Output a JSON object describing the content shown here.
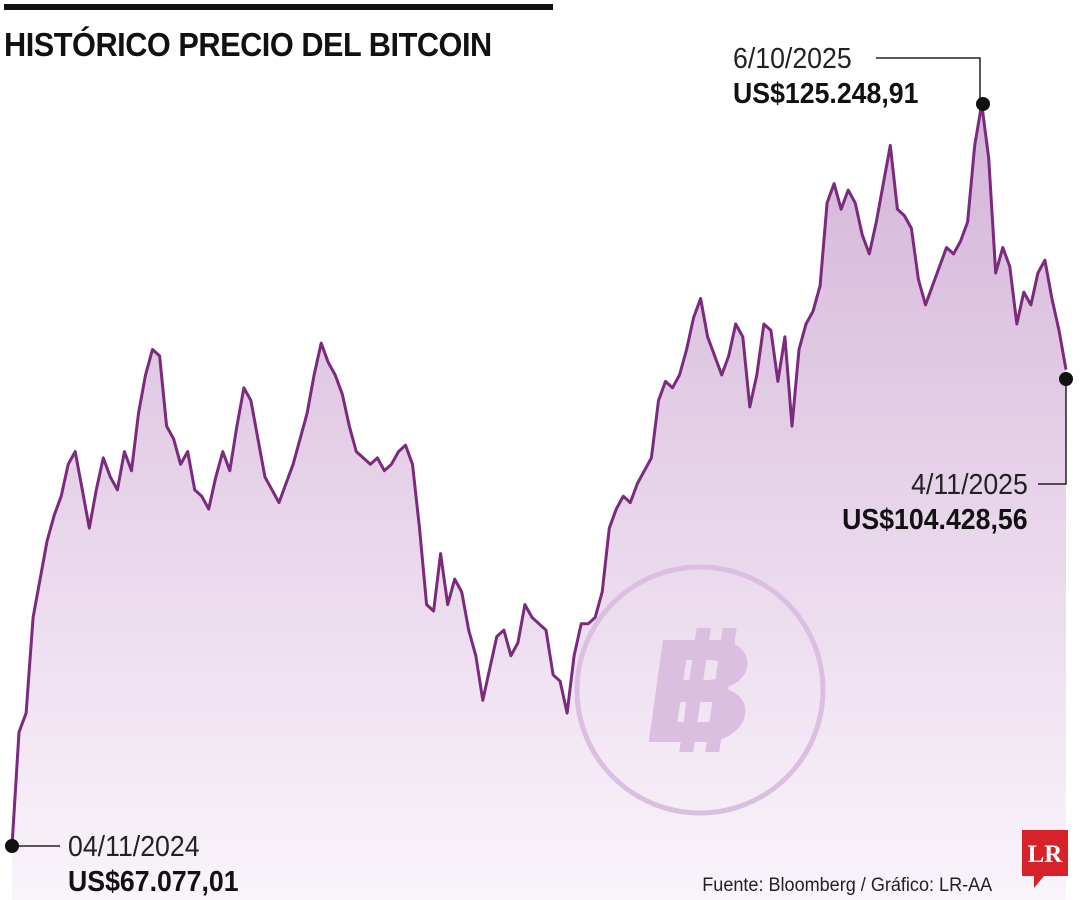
{
  "title": "HISTÓRICO PRECIO DEL BITCOIN",
  "annotations": {
    "start": {
      "date": "04/11/2024",
      "value": "US$67.077,01"
    },
    "peak": {
      "date": "6/10/2025",
      "value": "US$125.248,91"
    },
    "end": {
      "date": "4/11/2025",
      "value": "US$104.428,56"
    }
  },
  "source": "Fuente: Bloomberg / Gráfico: LR-AA",
  "logo_text": "LR",
  "colors": {
    "line": "#7b2a7d",
    "area_top": "#d4b4d8",
    "area_bottom": "#faf4fb",
    "coin": "#dbbfe0",
    "logo": "#d6232a"
  },
  "icons": {
    "watermark": "bitcoin-coin-icon"
  },
  "chart_data": {
    "type": "area",
    "x_range": [
      "2024-11-04",
      "2025-11-04"
    ],
    "ylim": [
      67077,
      125249
    ],
    "grid": false,
    "series": [
      {
        "values": [
          67077,
          76000,
          77500,
          85000,
          88000,
          91000,
          93000,
          94500,
          97000,
          98000,
          95000,
          92000,
          95000,
          97500,
          96000,
          95000,
          98000,
          96500,
          101000,
          104000,
          106000,
          105500,
          100000,
          99000,
          97000,
          98000,
          95000,
          94500,
          93500,
          96000,
          98000,
          96500,
          100000,
          103000,
          102000,
          99000,
          96000,
          95000,
          94000,
          95500,
          97000,
          99000,
          101000,
          104000,
          106500,
          105000,
          104000,
          102500,
          100000,
          98000,
          97500,
          97000,
          97500,
          96500,
          97000,
          98000,
          98500,
          97000,
          92000,
          86000,
          85500,
          90000,
          86000,
          88000,
          87000,
          84000,
          82000,
          78500,
          81000,
          83500,
          84000,
          82000,
          83000,
          86000,
          85000,
          84500,
          84000,
          80500,
          80000,
          77500,
          82000,
          84500,
          84500,
          85000,
          87000,
          92000,
          93500,
          94500,
          94000,
          95500,
          96500,
          97500,
          102000,
          103500,
          103000,
          104000,
          106000,
          108500,
          110000,
          107000,
          105500,
          104000,
          105500,
          108000,
          107000,
          101500,
          104000,
          108000,
          107500,
          103500,
          107000,
          100000,
          106000,
          108000,
          109000,
          111000,
          117500,
          119000,
          117000,
          118500,
          117500,
          115000,
          113500,
          116000,
          119000,
          122000,
          117000,
          116500,
          115500,
          111500,
          109500,
          111000,
          112500,
          114000,
          113500,
          114500,
          116000,
          122000,
          125249,
          121000,
          112000,
          114000,
          112500,
          108000,
          110500,
          109500,
          112000,
          113000,
          110000,
          107500,
          104429
        ]
      }
    ]
  }
}
